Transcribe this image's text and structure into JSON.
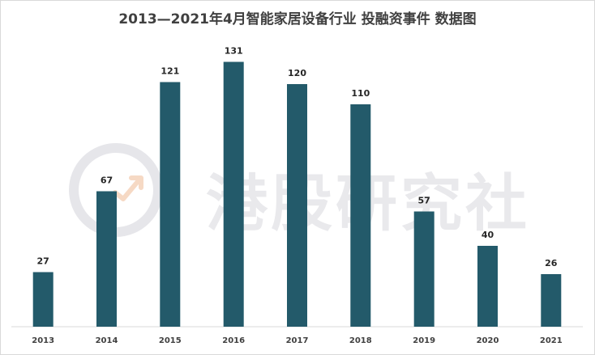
{
  "watermark": {
    "text": "港股研究社"
  },
  "chart_data": {
    "type": "bar",
    "title": "2013—2021年4月智能家居设备行业 投融资事件 数据图",
    "categories": [
      "2013",
      "2014",
      "2015",
      "2016",
      "2017",
      "2018",
      "2019",
      "2020",
      "2021"
    ],
    "values": [
      27,
      67,
      121,
      131,
      120,
      110,
      57,
      40,
      26
    ],
    "ylim": [
      0,
      135
    ],
    "grid": false,
    "bar_color": "#235a6a",
    "xlabel": "",
    "ylabel": ""
  }
}
